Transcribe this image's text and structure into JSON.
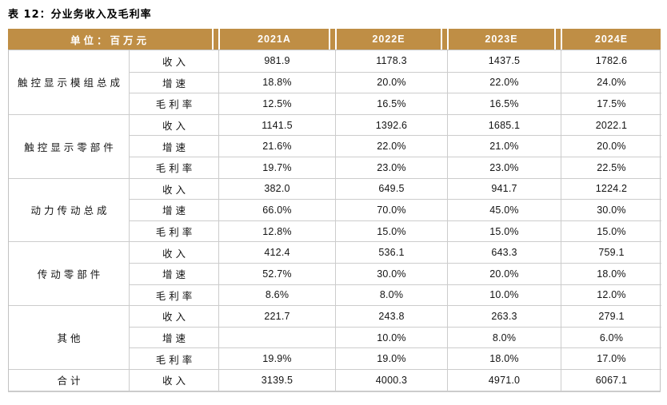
{
  "title": "表 12：分业务收入及毛利率",
  "colors": {
    "header_bg": "#BF8E45",
    "header_text": "#FFFFFF",
    "border": "#CCCCCC",
    "text": "#141414",
    "page_bg": "#FFFFFF"
  },
  "table": {
    "unit_header": "单位：百万元",
    "year_columns": [
      "2021A",
      "2022E",
      "2023E",
      "2024E"
    ],
    "groups": [
      {
        "name": "触控显示模组总成",
        "rows": [
          {
            "metric": "收入",
            "values": [
              "981.9",
              "1178.3",
              "1437.5",
              "1782.6"
            ]
          },
          {
            "metric": "增速",
            "values": [
              "18.8%",
              "20.0%",
              "22.0%",
              "24.0%"
            ]
          },
          {
            "metric": "毛利率",
            "values": [
              "12.5%",
              "16.5%",
              "16.5%",
              "17.5%"
            ]
          }
        ]
      },
      {
        "name": "触控显示零部件",
        "rows": [
          {
            "metric": "收入",
            "values": [
              "1141.5",
              "1392.6",
              "1685.1",
              "2022.1"
            ]
          },
          {
            "metric": "增速",
            "values": [
              "21.6%",
              "22.0%",
              "21.0%",
              "20.0%"
            ]
          },
          {
            "metric": "毛利率",
            "values": [
              "19.7%",
              "23.0%",
              "23.0%",
              "22.5%"
            ]
          }
        ]
      },
      {
        "name": "动力传动总成",
        "rows": [
          {
            "metric": "收入",
            "values": [
              "382.0",
              "649.5",
              "941.7",
              "1224.2"
            ]
          },
          {
            "metric": "增速",
            "values": [
              "66.0%",
              "70.0%",
              "45.0%",
              "30.0%"
            ]
          },
          {
            "metric": "毛利率",
            "values": [
              "12.8%",
              "15.0%",
              "15.0%",
              "15.0%"
            ]
          }
        ]
      },
      {
        "name": "传动零部件",
        "rows": [
          {
            "metric": "收入",
            "values": [
              "412.4",
              "536.1",
              "643.3",
              "759.1"
            ]
          },
          {
            "metric": "增速",
            "values": [
              "52.7%",
              "30.0%",
              "20.0%",
              "18.0%"
            ]
          },
          {
            "metric": "毛利率",
            "values": [
              "8.6%",
              "8.0%",
              "10.0%",
              "12.0%"
            ]
          }
        ]
      },
      {
        "name": "其他",
        "rows": [
          {
            "metric": "收入",
            "values": [
              "221.7",
              "243.8",
              "263.3",
              "279.1"
            ]
          },
          {
            "metric": "增速",
            "values": [
              "",
              "10.0%",
              "8.0%",
              "6.0%"
            ]
          },
          {
            "metric": "毛利率",
            "values": [
              "19.9%",
              "19.0%",
              "18.0%",
              "17.0%"
            ]
          }
        ]
      },
      {
        "name": "合计",
        "rows": [
          {
            "metric": "收入",
            "values": [
              "3139.5",
              "4000.3",
              "4971.0",
              "6067.1"
            ]
          }
        ]
      }
    ]
  }
}
